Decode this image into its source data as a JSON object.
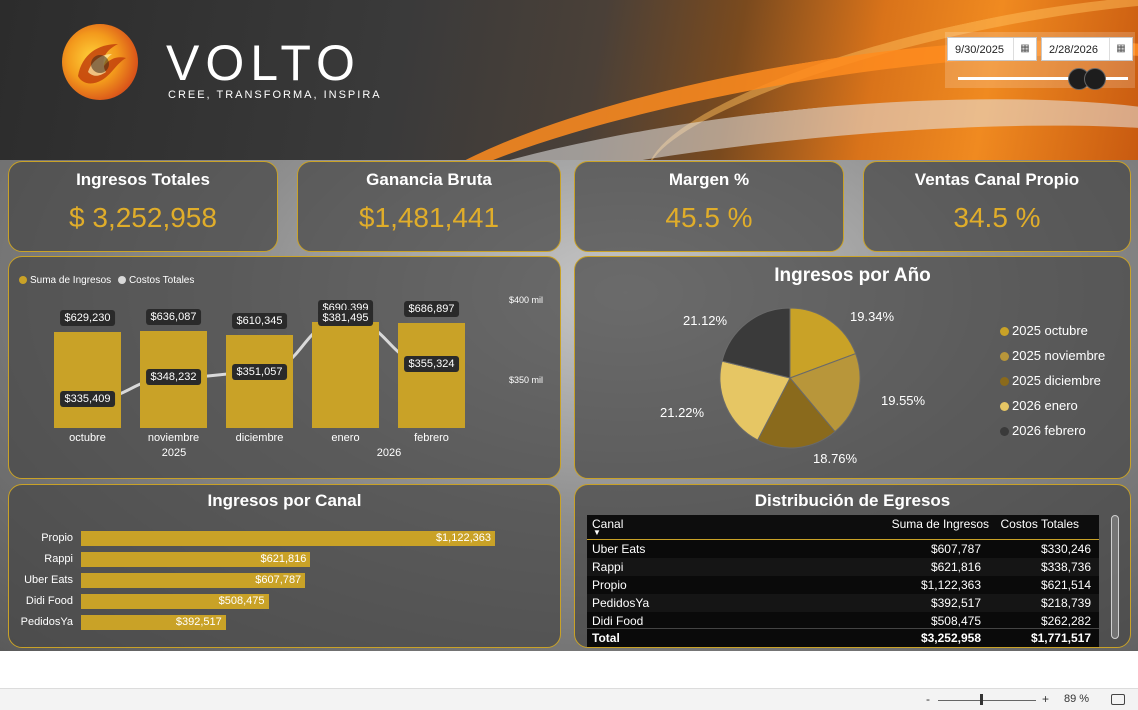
{
  "brand": {
    "name": "VOLTO",
    "tagline": "CREE, TRANSFORMA, INSPIRA"
  },
  "date_filter": {
    "start": "9/30/2025",
    "end": "2/28/2026",
    "calendar_icon": "calendar-icon"
  },
  "kpis": [
    {
      "title": "Ingresos Totales",
      "value": "$ 3,252,958"
    },
    {
      "title": "Ganancia Bruta",
      "value": "$1,481,441"
    },
    {
      "title": "Margen %",
      "value": "45.5 %"
    },
    {
      "title": "Ventas Canal Propio",
      "value": "34.5 %"
    }
  ],
  "colors": {
    "accent": "#c9a227",
    "kpi_value": "#e0ad2a",
    "line": "#d9d9d9"
  },
  "chart_data": [
    {
      "type": "bar",
      "legend": [
        "Suma de Ingresos",
        "Costos Totales"
      ],
      "categories": [
        "octubre",
        "noviembre",
        "diciembre",
        "enero",
        "febrero"
      ],
      "year_labels": [
        "2025",
        "2026"
      ],
      "series": [
        {
          "name": "Suma de Ingresos",
          "values": [
            629230,
            636087,
            610345,
            690399,
            686897
          ],
          "labels": [
            "$629,230",
            "$636,087",
            "$610,345",
            "$690,399",
            "$686,897"
          ]
        },
        {
          "name": "Costos Totales",
          "type": "line",
          "values": [
            335409,
            348232,
            351057,
            381495,
            355324
          ],
          "labels": [
            "$335,409",
            "$348,232",
            "$351,057",
            "$381,495",
            "$355,324"
          ]
        }
      ],
      "axis_labels": [
        "$400 mil",
        "$350 mil"
      ]
    },
    {
      "type": "pie",
      "title": "Ingresos por Año",
      "slices": [
        {
          "name": "2025 octubre",
          "pct": 19.34,
          "label": "19.34%",
          "color": "#c9a227"
        },
        {
          "name": "2025 noviembre",
          "pct": 19.55,
          "label": "19.55%",
          "color": "#b8963a"
        },
        {
          "name": "2025 diciembre",
          "pct": 18.76,
          "label": "18.76%",
          "color": "#8a6a1c"
        },
        {
          "name": "2026 enero",
          "pct": 21.22,
          "label": "21.22%",
          "color": "#e6c664"
        },
        {
          "name": "2026 febrero",
          "pct": 21.12,
          "label": "21.12%",
          "color": "#3a3a3a"
        }
      ]
    },
    {
      "type": "bar",
      "title": "Ingresos por Canal",
      "orientation": "horizontal",
      "categories": [
        "Propio",
        "Rappi",
        "Uber Eats",
        "Didi Food",
        "PedidosYa"
      ],
      "values": [
        1122363,
        621816,
        607787,
        508475,
        392517
      ],
      "labels": [
        "$1,122,363",
        "$621,816",
        "$607,787",
        "$508,475",
        "$392,517"
      ]
    },
    {
      "type": "table",
      "title": "Distribución de Egresos",
      "columns": [
        "Canal",
        "Suma de Ingresos",
        "Costos Totales"
      ],
      "rows": [
        [
          "Uber Eats",
          "$607,787",
          "$330,246"
        ],
        [
          "Rappi",
          "$621,816",
          "$338,736"
        ],
        [
          "Propio",
          "$1,122,363",
          "$621,514"
        ],
        [
          "PedidosYa",
          "$392,517",
          "$218,739"
        ],
        [
          "Didi Food",
          "$508,475",
          "$262,282"
        ]
      ],
      "total": [
        "Total",
        "$3,252,958",
        "$1,771,517"
      ]
    }
  ],
  "statusbar": {
    "zoom_minus": "-",
    "zoom_plus": "+",
    "zoom": "89 %"
  }
}
